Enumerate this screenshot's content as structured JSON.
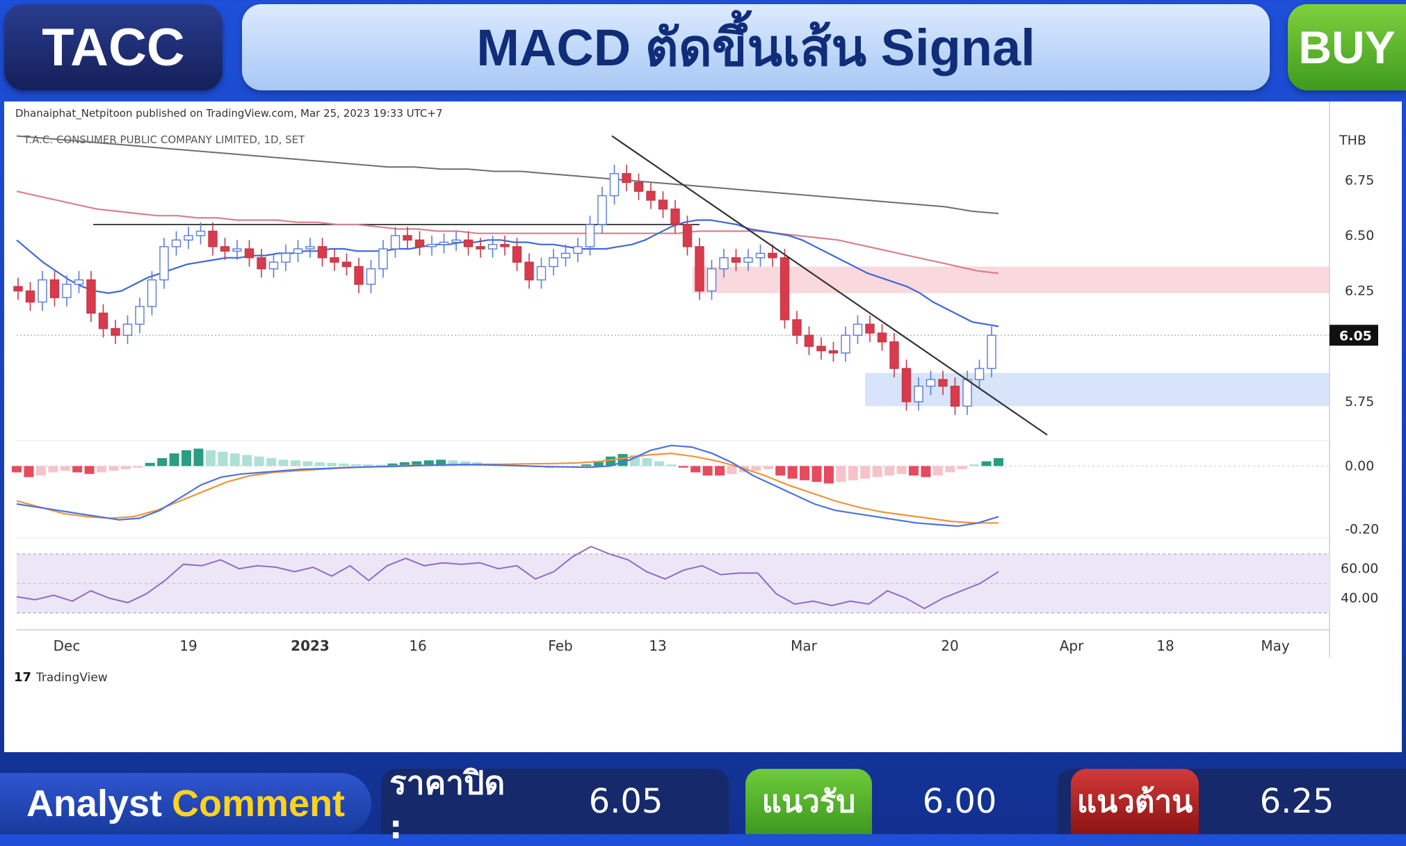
{
  "header": {
    "ticker": "TACC",
    "title": "MACD ตัดขึ้นเส้น Signal",
    "signal": "BUY",
    "signal_color": "#4caf2a"
  },
  "chart_meta": {
    "published_by": "Dhanaiphat_Netpitoon published on TradingView.com, Mar 25, 2023 19:33 UTC+7",
    "symbol_title": "T.A.C. CONSUMER PUBLIC COMPANY LIMITED, 1D, SET",
    "currency": "THB",
    "brand": "TradingView",
    "brand_glyph": "17"
  },
  "chart_data": {
    "type": "line",
    "price_panel": {
      "axis_labels": [
        "6.75",
        "6.50",
        "6.25",
        "5.75"
      ],
      "y_ticks": [
        6.75,
        6.5,
        6.25,
        5.75
      ],
      "ylim": [
        5.58,
        6.98
      ],
      "last_price": "6.05",
      "last_price_value": 6.05,
      "close_series": [
        6.25,
        6.2,
        6.3,
        6.22,
        6.28,
        6.3,
        6.15,
        6.08,
        6.05,
        6.1,
        6.18,
        6.3,
        6.45,
        6.48,
        6.5,
        6.52,
        6.45,
        6.43,
        6.44,
        6.4,
        6.35,
        6.38,
        6.42,
        6.44,
        6.45,
        6.4,
        6.38,
        6.36,
        6.28,
        6.35,
        6.44,
        6.5,
        6.48,
        6.45,
        6.46,
        6.47,
        6.48,
        6.45,
        6.44,
        6.46,
        6.45,
        6.38,
        6.3,
        6.36,
        6.4,
        6.42,
        6.45,
        6.55,
        6.68,
        6.78,
        6.74,
        6.7,
        6.66,
        6.62,
        6.55,
        6.45,
        6.25,
        6.35,
        6.4,
        6.38,
        6.4,
        6.42,
        6.4,
        6.12,
        6.05,
        6.0,
        5.98,
        5.97,
        6.05,
        6.1,
        6.06,
        6.02,
        5.9,
        5.75,
        5.82,
        5.85,
        5.82,
        5.73,
        5.85,
        5.9,
        6.05
      ],
      "ma_short": [
        6.48,
        6.43,
        6.38,
        6.34,
        6.3,
        6.27,
        6.25,
        6.24,
        6.25,
        6.28,
        6.31,
        6.33,
        6.35,
        6.37,
        6.38,
        6.39,
        6.4,
        6.4,
        6.41,
        6.41,
        6.42,
        6.42,
        6.43,
        6.43,
        6.44,
        6.44,
        6.43,
        6.43,
        6.43,
        6.44,
        6.44,
        6.45,
        6.46,
        6.46,
        6.47,
        6.47,
        6.48,
        6.48,
        6.47,
        6.47,
        6.46,
        6.46,
        6.45,
        6.44,
        6.44,
        6.44,
        6.45,
        6.46,
        6.48,
        6.51,
        6.54,
        6.56,
        6.57,
        6.57,
        6.56,
        6.55,
        6.53,
        6.52,
        6.51,
        6.5,
        6.48,
        6.45,
        6.42,
        6.39,
        6.36,
        6.33,
        6.31,
        6.29,
        6.27,
        6.24,
        6.2,
        6.17,
        6.14,
        6.11,
        6.1,
        6.09
      ],
      "ma_medium": [
        6.7,
        6.68,
        6.66,
        6.64,
        6.62,
        6.61,
        6.6,
        6.59,
        6.59,
        6.58,
        6.58,
        6.57,
        6.57,
        6.57,
        6.56,
        6.56,
        6.55,
        6.55,
        6.54,
        6.53,
        6.53,
        6.52,
        6.52,
        6.51,
        6.51,
        6.51,
        6.51,
        6.51,
        6.51,
        6.51,
        6.51,
        6.51,
        6.51,
        6.51,
        6.52,
        6.52,
        6.52,
        6.52,
        6.51,
        6.5,
        6.49,
        6.48,
        6.46,
        6.44,
        6.42,
        6.4,
        6.38,
        6.36,
        6.34,
        6.33
      ],
      "ma_long": [
        6.95,
        6.94,
        6.93,
        6.92,
        6.91,
        6.9,
        6.89,
        6.88,
        6.87,
        6.86,
        6.85,
        6.84,
        6.83,
        6.82,
        6.81,
        6.81,
        6.8,
        6.8,
        6.79,
        6.79,
        6.78,
        6.77,
        6.76,
        6.75,
        6.74,
        6.73,
        6.72,
        6.71,
        6.7,
        6.69,
        6.68,
        6.67,
        6.66,
        6.65,
        6.64,
        6.63,
        6.61,
        6.6
      ],
      "trendline": {
        "from": [
          6.95
        ],
        "to": [
          5.6
        ]
      },
      "horizontal_level": 6.55,
      "resistance_zone": [
        6.24,
        6.36
      ],
      "support_zone": [
        5.73,
        5.88
      ]
    },
    "macd_panel": {
      "axis_labels": [
        "0.00",
        "-0.20"
      ],
      "y_ticks": [
        0.0,
        -0.2
      ],
      "ylim": [
        -0.21,
        0.08
      ],
      "histogram": [
        -0.02,
        -0.035,
        -0.03,
        -0.02,
        -0.015,
        -0.02,
        -0.025,
        -0.02,
        -0.015,
        -0.01,
        -0.005,
        0.01,
        0.025,
        0.04,
        0.05,
        0.055,
        0.05,
        0.045,
        0.04,
        0.035,
        0.03,
        0.025,
        0.02,
        0.018,
        0.015,
        0.012,
        0.01,
        0.008,
        0.006,
        0.005,
        0.004,
        0.008,
        0.012,
        0.015,
        0.018,
        0.02,
        0.018,
        0.015,
        0.012,
        0.008,
        0.005,
        0.002,
        0.0,
        -0.003,
        -0.005,
        -0.004,
        0.0,
        0.005,
        0.015,
        0.03,
        0.038,
        0.035,
        0.025,
        0.015,
        0.005,
        -0.005,
        -0.02,
        -0.03,
        -0.03,
        -0.025,
        -0.02,
        -0.015,
        -0.01,
        -0.03,
        -0.04,
        -0.045,
        -0.05,
        -0.055,
        -0.05,
        -0.045,
        -0.04,
        -0.035,
        -0.03,
        -0.025,
        -0.03,
        -0.035,
        -0.03,
        -0.02,
        -0.01,
        0.005,
        0.015,
        0.025
      ],
      "macd_line": [
        -0.12,
        -0.13,
        -0.14,
        -0.15,
        -0.16,
        -0.17,
        -0.165,
        -0.14,
        -0.1,
        -0.06,
        -0.035,
        -0.025,
        -0.02,
        -0.015,
        -0.01,
        -0.008,
        -0.005,
        -0.003,
        -0.002,
        0.0,
        0.002,
        0.004,
        0.005,
        0.004,
        0.002,
        0.0,
        -0.002,
        -0.003,
        -0.004,
        0.0,
        0.02,
        0.05,
        0.065,
        0.06,
        0.04,
        0.01,
        -0.03,
        -0.06,
        -0.09,
        -0.12,
        -0.14,
        -0.15,
        -0.16,
        -0.17,
        -0.18,
        -0.185,
        -0.19,
        -0.18,
        -0.16
      ],
      "signal_line": [
        -0.11,
        -0.13,
        -0.15,
        -0.16,
        -0.165,
        -0.16,
        -0.14,
        -0.11,
        -0.08,
        -0.05,
        -0.03,
        -0.02,
        -0.015,
        -0.01,
        -0.006,
        -0.003,
        0.0,
        0.002,
        0.003,
        0.004,
        0.005,
        0.006,
        0.007,
        0.008,
        0.01,
        0.015,
        0.025,
        0.035,
        0.04,
        0.03,
        0.015,
        -0.005,
        -0.03,
        -0.06,
        -0.085,
        -0.11,
        -0.13,
        -0.145,
        -0.155,
        -0.165,
        -0.175,
        -0.18,
        -0.18
      ]
    },
    "rsi_panel": {
      "axis_labels": [
        "60.00",
        "40.00"
      ],
      "y_ticks": [
        60,
        40
      ],
      "ylim": [
        28,
        77
      ],
      "band": [
        30,
        70
      ],
      "rsi": [
        41,
        39,
        42,
        38,
        45,
        40,
        37,
        43,
        52,
        63,
        62,
        66,
        60,
        62,
        61,
        58,
        61,
        55,
        62,
        52,
        62,
        67,
        62,
        64,
        63,
        64,
        60,
        62,
        53,
        58,
        68,
        75,
        70,
        66,
        58,
        53,
        59,
        62,
        56,
        57,
        57,
        43,
        36,
        38,
        35,
        38,
        36,
        45,
        40,
        33,
        40,
        45,
        50,
        58
      ]
    },
    "x_axis": {
      "tick_labels": [
        "Dec",
        "19",
        "2023",
        "16",
        "Feb",
        "13",
        "Mar",
        "20",
        "Apr",
        "18",
        "May"
      ],
      "bold_labels": [
        "2023"
      ]
    }
  },
  "footer": {
    "analyst_word1": "Analyst",
    "analyst_word2": "Comment",
    "close_label": "ราคาปิด :",
    "close_value": "6.05",
    "support_label": "แนวรับ",
    "support_value": "6.00",
    "resistance_label": "แนวต้าน",
    "resistance_value": "6.25"
  }
}
